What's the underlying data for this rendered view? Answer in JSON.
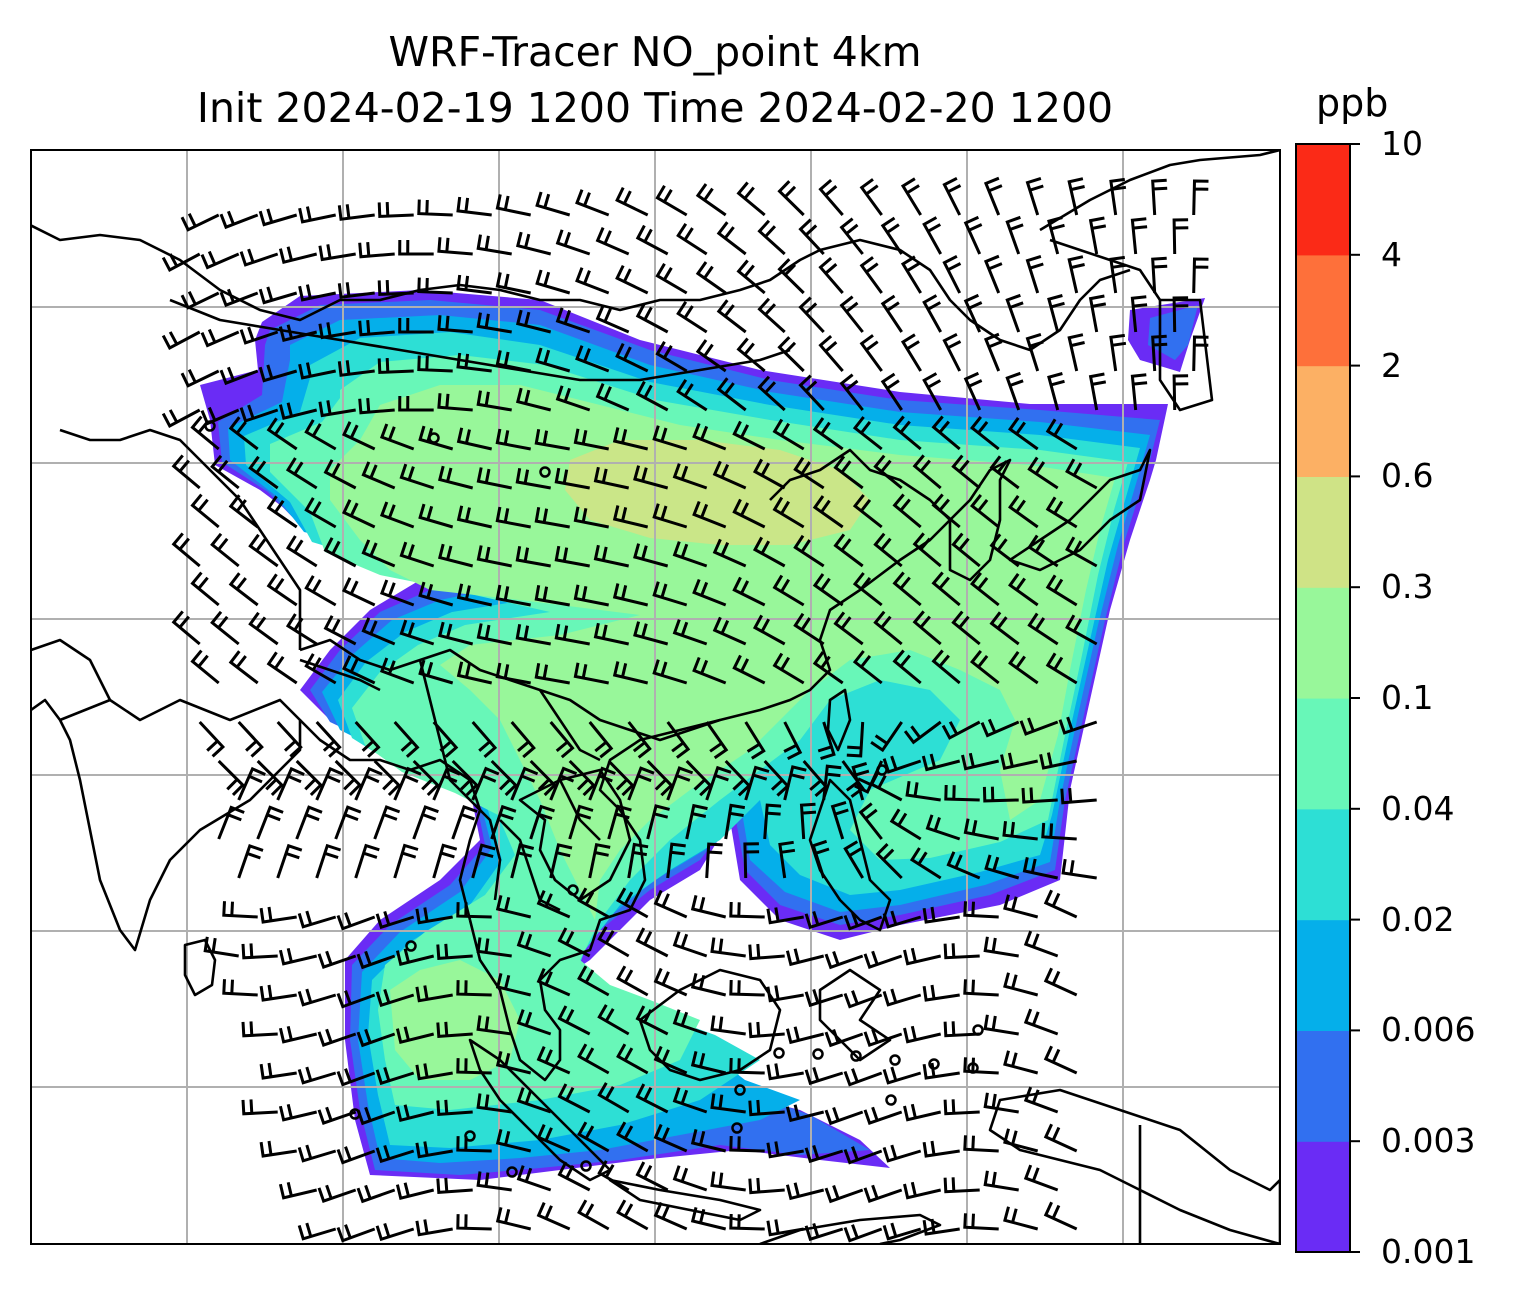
{
  "title": {
    "line1": "WRF-Tracer NO_point 4km",
    "line2": "Init 2024-02-19 1200 Time 2024-02-20 1200"
  },
  "colorbar": {
    "units": "ppb",
    "ticks": [
      "0.001",
      "0.003",
      "0.006",
      "0.02",
      "0.04",
      "0.1",
      "0.3",
      "0.6",
      "2",
      "4",
      "10"
    ],
    "colors": [
      "#6a2cf5",
      "#3170f0",
      "#05afea",
      "#2ddfd5",
      "#68f7b8",
      "#98f79a",
      "#cfe386",
      "#fcb064",
      "#fe703a",
      "#fb2a17"
    ]
  },
  "map": {
    "gridlines": true,
    "features": [
      "coastlines",
      "country-borders",
      "wind-barbs",
      "tracer-concentration-fill"
    ]
  }
}
